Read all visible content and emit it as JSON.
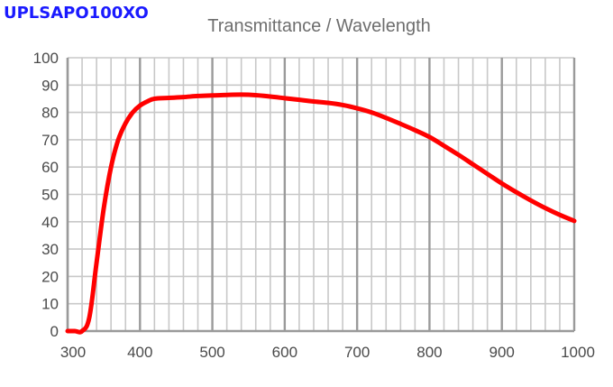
{
  "product_name": "UPLSAPO100XO",
  "chart_data": {
    "type": "line",
    "title": "Transmittance / Wavelength",
    "xlabel": "",
    "ylabel": "",
    "xlim": [
      300,
      1000
    ],
    "ylim": [
      0,
      100
    ],
    "x_major_ticks": [
      300,
      400,
      500,
      600,
      700,
      800,
      900,
      1000
    ],
    "x_tick_labels": [
      "300",
      "400",
      "500",
      "600",
      "700",
      "800",
      "900",
      "1000"
    ],
    "x_minor_step": 20,
    "y_ticks": [
      0,
      10,
      20,
      30,
      40,
      50,
      60,
      70,
      80,
      90,
      100
    ],
    "y_tick_labels": [
      "0",
      "10",
      "20",
      "30",
      "40",
      "50",
      "60",
      "70",
      "80",
      "90",
      "100"
    ],
    "grid": true,
    "series": [
      {
        "name": "Transmittance",
        "color": "#ff0000",
        "x": [
          300,
          310,
          320,
          330,
          340,
          350,
          360,
          370,
          380,
          390,
          400,
          410,
          420,
          440,
          460,
          480,
          500,
          520,
          540,
          560,
          580,
          600,
          620,
          640,
          660,
          680,
          700,
          720,
          740,
          760,
          780,
          800,
          820,
          840,
          860,
          880,
          900,
          920,
          940,
          960,
          980,
          1000
        ],
        "y": [
          0,
          0,
          0,
          5,
          25,
          45,
          60,
          70,
          76,
          80,
          82.5,
          84,
          85,
          85.3,
          85.6,
          86,
          86.2,
          86.4,
          86.5,
          86.3,
          85.8,
          85.2,
          84.6,
          84,
          83.5,
          82.7,
          81.5,
          80,
          78,
          75.8,
          73.5,
          71,
          67.8,
          64.5,
          61,
          57.5,
          54,
          50.8,
          47.8,
          45,
          42.5,
          40.3
        ]
      }
    ]
  }
}
